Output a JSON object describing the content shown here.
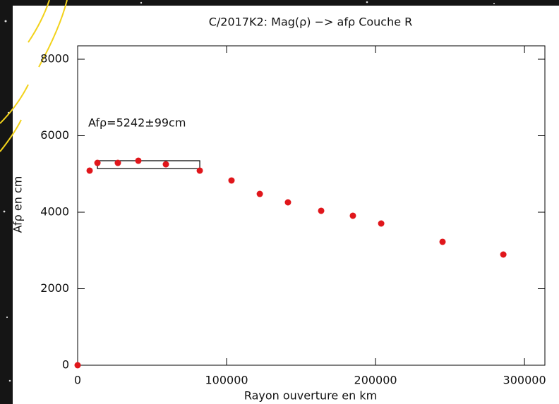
{
  "chart_data": {
    "type": "scatter",
    "title": "C/2017K2: Mag(ρ) −> afρ    Couche R",
    "xlabel": "Rayon ouverture en km",
    "ylabel": "Afρ en cm",
    "annotation": "Afρ=5242±99cm",
    "color": "#e0161b",
    "xlim": [
      0,
      313700
    ],
    "ylim": [
      0,
      8350
    ],
    "xticks": [
      0,
      100000,
      200000,
      300000
    ],
    "yticks": [
      0,
      2000,
      4000,
      6000,
      8000
    ],
    "x": [
      0,
      8060,
      13300,
      27000,
      40760,
      59240,
      82000,
      103300,
      122300,
      141200,
      163500,
      184800,
      203800,
      245000,
      285800
    ],
    "values": [
      0,
      5088,
      5290,
      5290,
      5346,
      5253,
      5088,
      4830,
      4479,
      4258,
      4037,
      3908,
      3705,
      3226,
      2894
    ],
    "fit_box": {
      "x": [
        13300,
        82000
      ],
      "y": [
        5140,
        5346
      ]
    }
  }
}
